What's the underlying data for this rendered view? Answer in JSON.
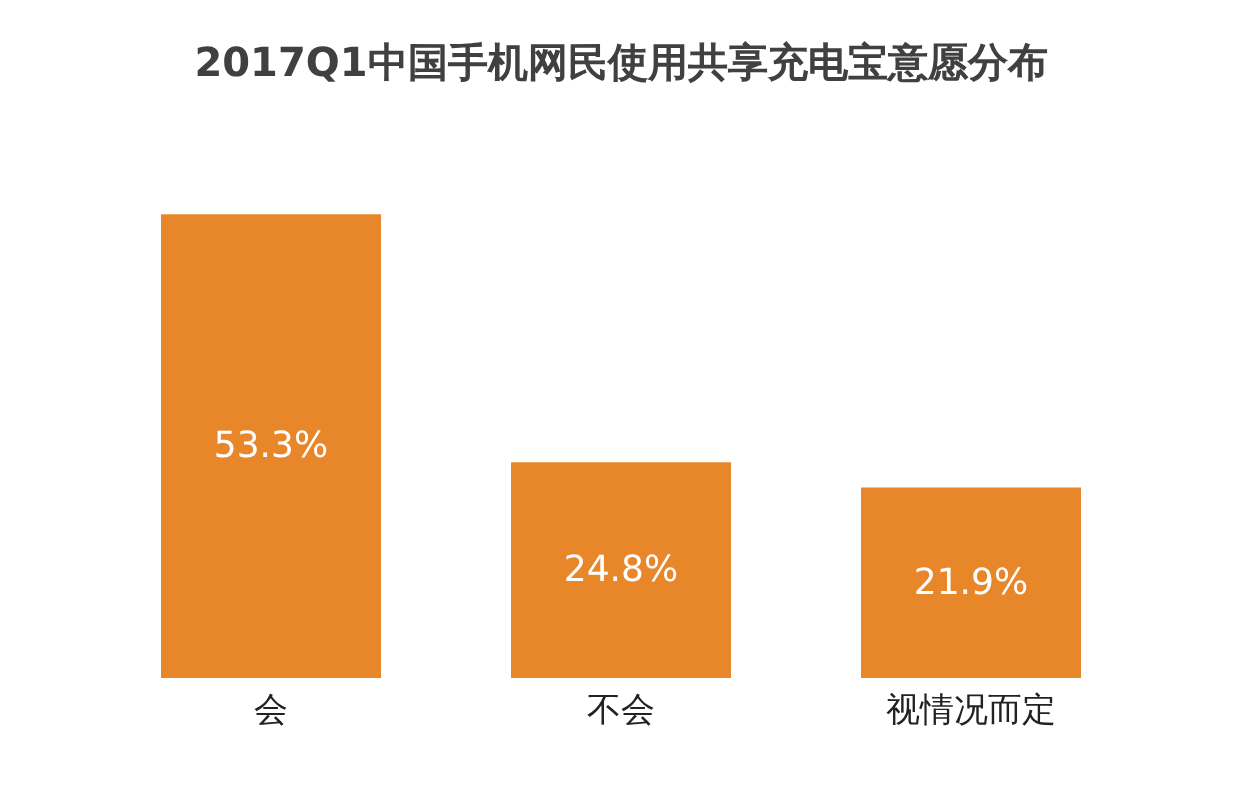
{
  "chart_data": {
    "type": "bar",
    "title": "2017Q1中国手机网民使用共享充电宝意愿分布",
    "categories": [
      "会",
      "不会",
      "视情况而定"
    ],
    "values": [
      53.3,
      24.8,
      21.9
    ],
    "color": "#e8872a",
    "data_labels": true,
    "value_labels": [
      "53.3%",
      "24.8%",
      "21.9%"
    ]
  }
}
